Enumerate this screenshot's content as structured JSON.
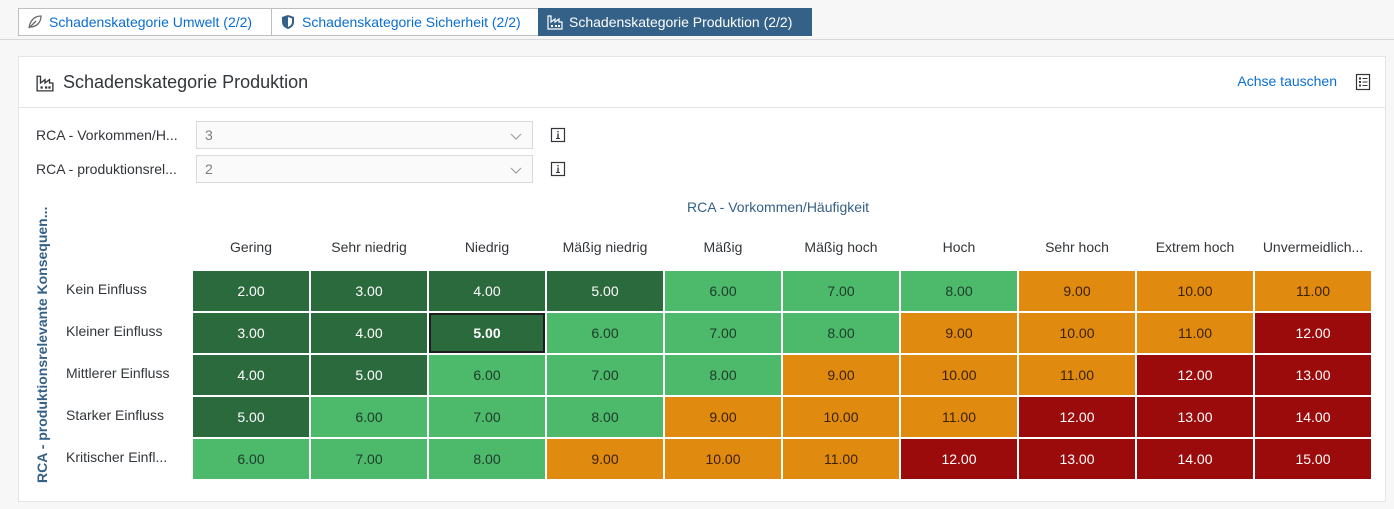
{
  "tabs": [
    {
      "label": "Schadenskategorie Umwelt (2/2)",
      "icon": "leaf-icon",
      "active": false
    },
    {
      "label": "Schadenskategorie Sicherheit (2/2)",
      "icon": "shield-icon",
      "active": false
    },
    {
      "label": "Schadenskategorie Produktion (2/2)",
      "icon": "factory-icon",
      "active": true
    }
  ],
  "panel": {
    "title": "Schadenskategorie Produktion",
    "swap_axes": "Achse tauschen"
  },
  "filters": [
    {
      "label": "RCA - Vorkommen/H...",
      "value": "3"
    },
    {
      "label": "RCA - produktionsrel...",
      "value": "2"
    }
  ],
  "matrix": {
    "x_axis_label": "RCA - Vorkommen/Häufigkeit",
    "y_axis_label": "RCA - produktionsrelevante Konsequen...",
    "columns": [
      "Gering",
      "Sehr niedrig",
      "Niedrig",
      "Mäßig niedrig",
      "Mäßig",
      "Mäßig hoch",
      "Hoch",
      "Sehr hoch",
      "Extrem hoch",
      "Unvermeidlich..."
    ],
    "rows": [
      {
        "label": "Kein Einfluss",
        "values": [
          "2.00",
          "3.00",
          "4.00",
          "5.00",
          "6.00",
          "7.00",
          "8.00",
          "9.00",
          "10.00",
          "11.00"
        ],
        "colors": [
          "dg",
          "dg",
          "dg",
          "dg",
          "lg",
          "lg",
          "lg",
          "or",
          "or",
          "or"
        ]
      },
      {
        "label": "Kleiner Einfluss",
        "values": [
          "3.00",
          "4.00",
          "5.00",
          "6.00",
          "7.00",
          "8.00",
          "9.00",
          "10.00",
          "11.00",
          "12.00"
        ],
        "colors": [
          "dg",
          "dg",
          "dg",
          "lg",
          "lg",
          "lg",
          "or",
          "or",
          "or",
          "rd"
        ]
      },
      {
        "label": "Mittlerer Einfluss",
        "values": [
          "4.00",
          "5.00",
          "6.00",
          "7.00",
          "8.00",
          "9.00",
          "10.00",
          "11.00",
          "12.00",
          "13.00"
        ],
        "colors": [
          "dg",
          "dg",
          "lg",
          "lg",
          "lg",
          "or",
          "or",
          "or",
          "rd",
          "rd"
        ]
      },
      {
        "label": "Starker Einfluss",
        "values": [
          "5.00",
          "6.00",
          "7.00",
          "8.00",
          "9.00",
          "10.00",
          "11.00",
          "12.00",
          "13.00",
          "14.00"
        ],
        "colors": [
          "dg",
          "lg",
          "lg",
          "lg",
          "or",
          "or",
          "or",
          "rd",
          "rd",
          "rd"
        ]
      },
      {
        "label": "Kritischer Einfl...",
        "values": [
          "6.00",
          "7.00",
          "8.00",
          "9.00",
          "10.00",
          "11.00",
          "12.00",
          "13.00",
          "14.00",
          "15.00"
        ],
        "colors": [
          "lg",
          "lg",
          "lg",
          "or",
          "or",
          "or",
          "rd",
          "rd",
          "rd",
          "rd"
        ]
      }
    ],
    "selected": {
      "row": 1,
      "col": 2
    },
    "color_map": {
      "dg": "#2b6a3c",
      "lg": "#4cb96b",
      "or": "#e08a10",
      "rd": "#9c0b0b"
    }
  }
}
